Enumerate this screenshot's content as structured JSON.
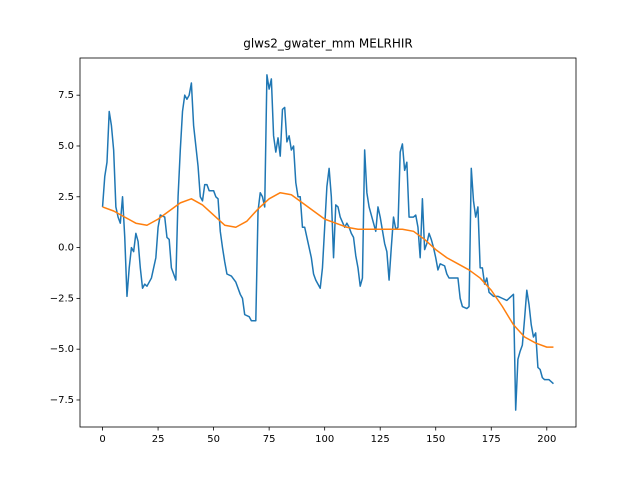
{
  "chart_data": {
    "type": "line",
    "title": "glws2_gwater_mm MELRHIR",
    "xlim": [
      -10.15,
      213.15
    ],
    "ylim": [
      -8.83,
      9.33
    ],
    "xticks": [
      0,
      25,
      50,
      75,
      100,
      125,
      150,
      175,
      200
    ],
    "yticks": [
      {
        "value": -7.5,
        "label": "−7.5"
      },
      {
        "value": -5,
        "label": "−5.0"
      },
      {
        "value": -2.5,
        "label": "−2.5"
      },
      {
        "value": 0,
        "label": "0.0"
      },
      {
        "value": 2.5,
        "label": "2.5"
      },
      {
        "value": 5,
        "label": "5.0"
      },
      7.5
    ],
    "series": [
      {
        "color": "#1f77b4",
        "x": [
          0,
          1,
          2,
          3,
          4,
          5,
          6,
          7,
          8,
          9,
          10,
          11,
          12,
          13,
          14,
          15,
          16,
          17,
          18,
          19,
          20,
          22,
          24,
          25,
          26,
          28,
          29,
          30,
          31,
          33,
          34,
          35,
          36,
          37,
          38,
          39,
          40,
          41,
          42,
          43,
          44,
          45,
          46,
          47,
          48,
          50,
          51,
          52,
          53,
          54,
          55,
          56,
          58,
          60,
          62,
          63,
          64,
          66,
          67,
          69,
          70,
          71,
          72,
          73,
          74,
          75,
          76,
          77,
          78,
          79,
          80,
          81,
          82,
          83,
          84,
          85,
          86,
          87,
          88,
          89,
          90,
          91,
          92,
          93,
          94,
          95,
          96,
          98,
          99,
          100,
          101,
          102,
          103,
          104,
          105,
          106,
          107,
          109,
          110,
          111,
          112,
          113,
          114,
          115,
          116,
          117,
          118,
          119,
          120,
          122,
          123,
          124,
          125,
          127,
          128,
          129,
          130,
          131,
          132,
          133,
          134,
          135,
          136,
          137,
          138,
          139,
          140,
          141,
          142,
          143,
          144,
          145,
          146,
          147,
          148,
          149,
          150,
          151,
          152,
          154,
          155,
          156,
          158,
          160,
          161,
          162,
          164,
          165,
          166,
          167,
          168,
          169,
          170,
          171,
          172,
          173,
          174,
          175,
          176,
          178,
          180,
          182,
          184,
          185,
          186,
          187,
          188,
          189,
          190,
          191,
          192,
          193,
          194,
          195,
          196,
          197,
          198,
          199,
          201,
          203
        ],
        "values": [
          2.0,
          3.5,
          4.2,
          6.7,
          6.0,
          4.8,
          2.0,
          1.5,
          1.2,
          2.5,
          0.5,
          -2.4,
          -1.0,
          0.0,
          -0.2,
          0.7,
          0.3,
          -1.0,
          -2.0,
          -1.8,
          -1.9,
          -1.5,
          -0.5,
          1.0,
          1.6,
          1.5,
          0.5,
          0.4,
          -1.0,
          -1.6,
          2.5,
          4.8,
          6.7,
          7.5,
          7.3,
          7.5,
          8.1,
          6.0,
          5.0,
          4.0,
          2.5,
          2.3,
          3.1,
          3.1,
          2.8,
          2.8,
          2.5,
          2.4,
          0.8,
          0.0,
          -0.7,
          -1.3,
          -1.4,
          -1.7,
          -2.3,
          -2.5,
          -3.3,
          -3.4,
          -3.6,
          -3.6,
          1.8,
          2.7,
          2.5,
          2.0,
          8.5,
          7.8,
          8.3,
          5.5,
          4.7,
          5.4,
          4.5,
          6.8,
          6.9,
          5.2,
          5.5,
          4.8,
          5.0,
          3.2,
          2.5,
          2.5,
          1.0,
          1.0,
          0.5,
          0.0,
          -0.5,
          -1.3,
          -1.6,
          -2.0,
          -1.0,
          1.0,
          3.0,
          3.9,
          2.5,
          -0.5,
          2.1,
          2.0,
          1.5,
          1.0,
          1.2,
          1.0,
          0.7,
          0.5,
          -0.4,
          -1.0,
          -1.9,
          -1.5,
          4.8,
          2.7,
          2.0,
          1.2,
          0.8,
          2.0,
          1.5,
          0.2,
          -0.2,
          -1.6,
          0.0,
          1.5,
          0.9,
          1.0,
          4.7,
          5.1,
          3.8,
          4.2,
          1.5,
          1.5,
          1.5,
          1.6,
          1.0,
          -0.5,
          2.4,
          -0.1,
          0.2,
          0.7,
          0.4,
          0.0,
          -0.5,
          -1.1,
          -0.8,
          -0.9,
          -1.3,
          -1.5,
          -1.5,
          -1.5,
          -2.5,
          -2.9,
          -3.0,
          -2.9,
          3.9,
          2.3,
          1.5,
          2.0,
          -1.0,
          -1.0,
          -1.8,
          -1.5,
          -2.2,
          -2.3,
          -2.4,
          -2.4,
          -2.5,
          -2.6,
          -2.4,
          -2.3,
          -8.0,
          -5.5,
          -5.1,
          -4.8,
          -3.5,
          -2.1,
          -2.8,
          -3.8,
          -4.4,
          -4.2,
          -5.9,
          -6.0,
          -6.4,
          -6.5,
          -6.5,
          -6.7
        ]
      },
      {
        "color": "#ff7f0e",
        "x": [
          0,
          5,
          10,
          15,
          20,
          25,
          30,
          35,
          40,
          45,
          50,
          55,
          60,
          65,
          70,
          75,
          80,
          85,
          90,
          95,
          100,
          105,
          110,
          115,
          120,
          125,
          130,
          135,
          140,
          145,
          150,
          155,
          160,
          165,
          170,
          175,
          180,
          185,
          190,
          195,
          200,
          203
        ],
        "values": [
          2.0,
          1.8,
          1.5,
          1.2,
          1.1,
          1.4,
          1.8,
          2.2,
          2.4,
          2.1,
          1.6,
          1.1,
          1.0,
          1.3,
          1.9,
          2.4,
          2.7,
          2.6,
          2.2,
          1.8,
          1.4,
          1.2,
          1.0,
          0.9,
          0.9,
          0.9,
          0.9,
          0.9,
          0.8,
          0.4,
          -0.1,
          -0.5,
          -0.8,
          -1.1,
          -1.5,
          -2.1,
          -2.9,
          -3.8,
          -4.4,
          -4.7,
          -4.9,
          -4.9
        ]
      }
    ]
  }
}
